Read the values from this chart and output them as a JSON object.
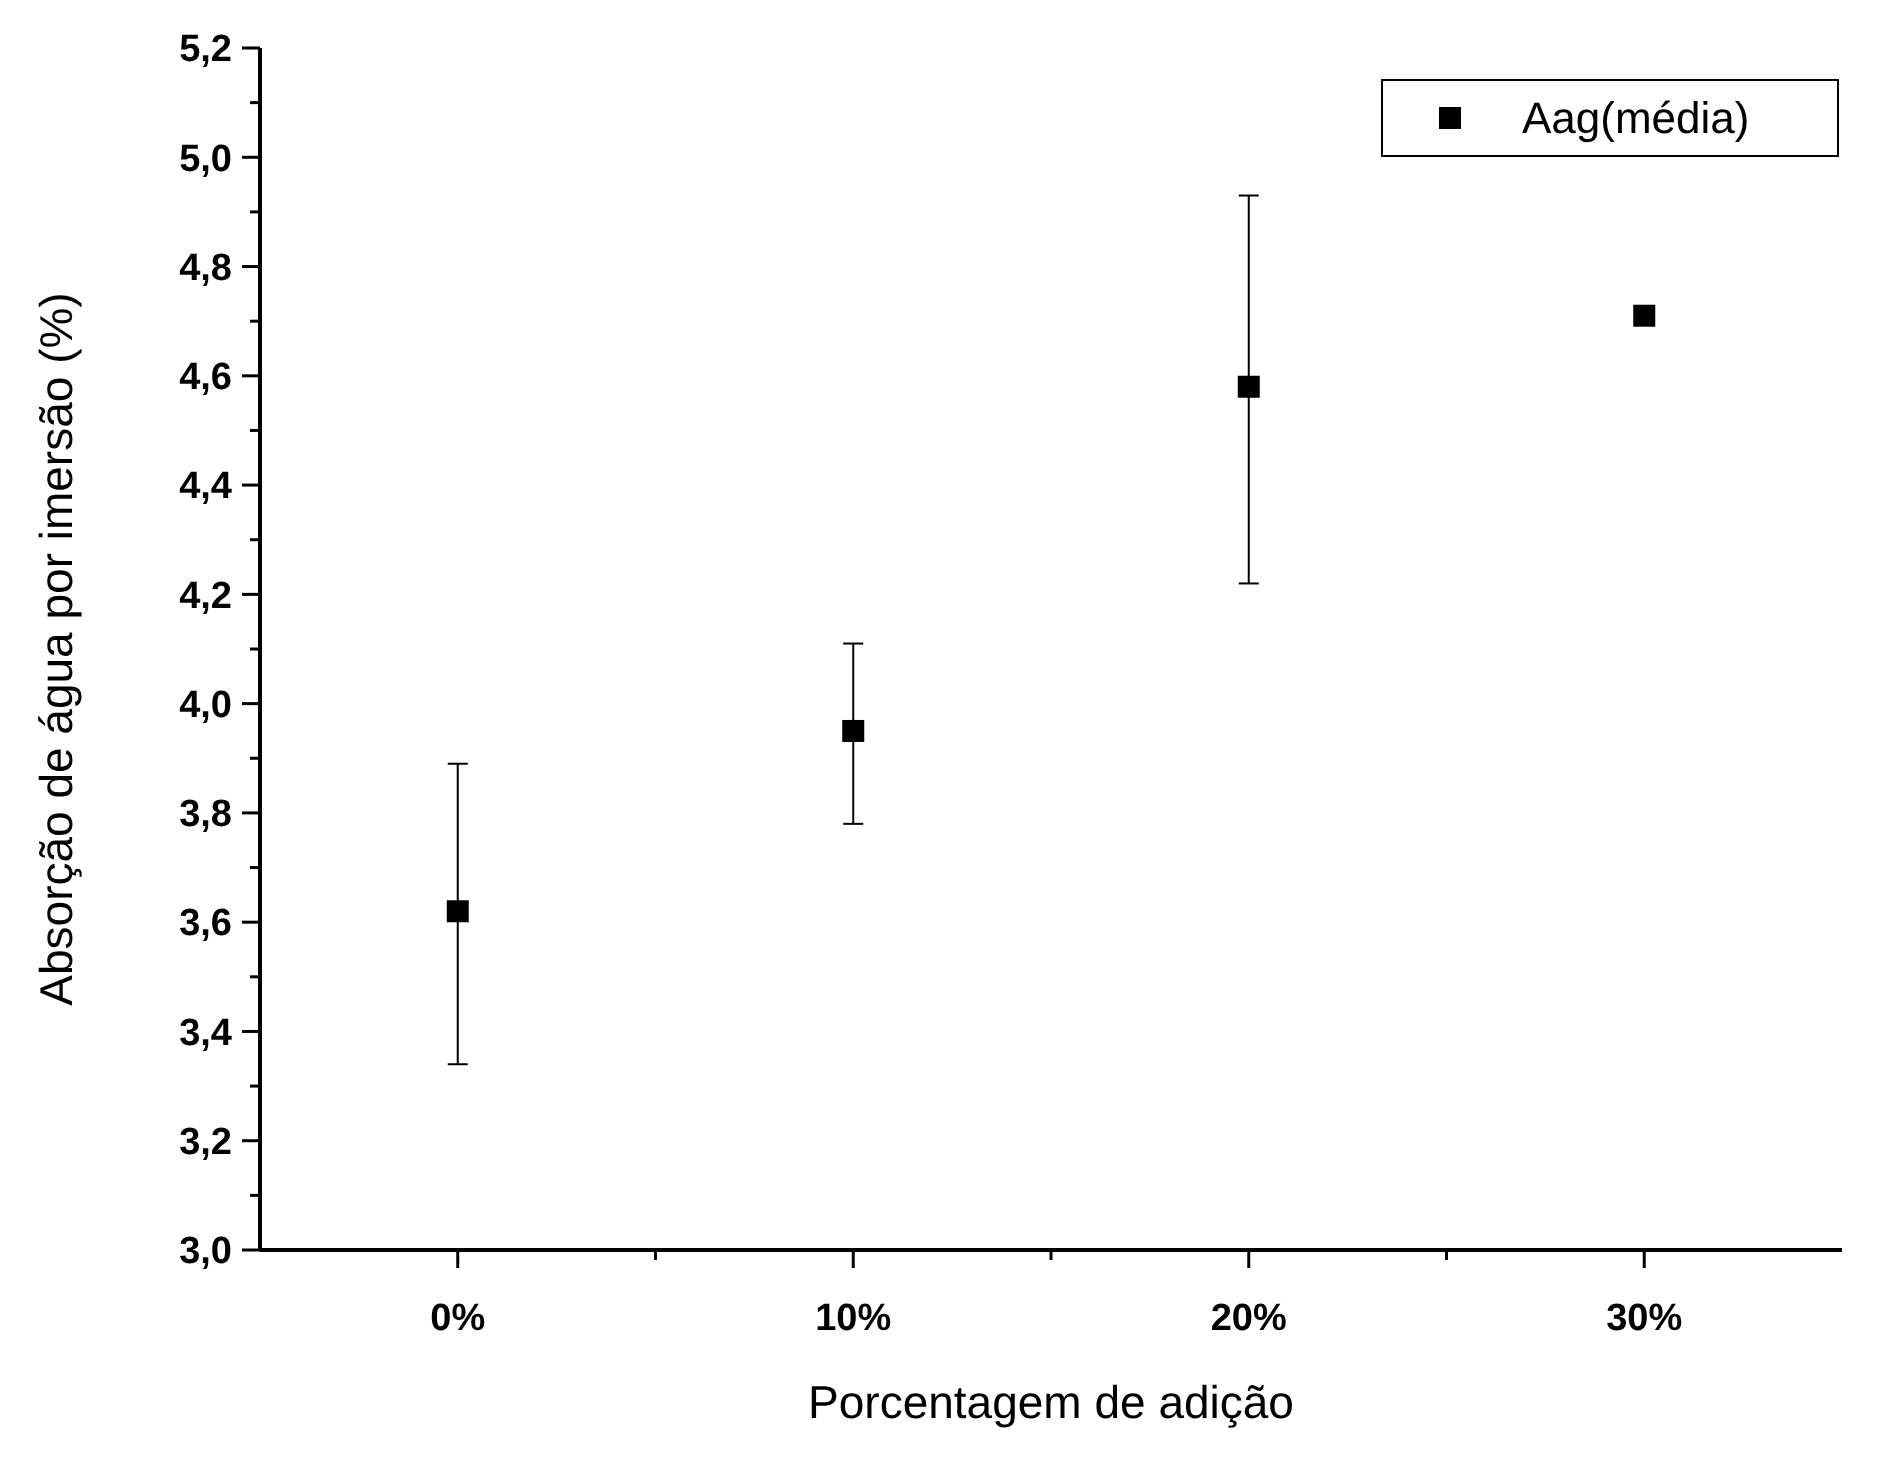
{
  "chart_data": {
    "type": "scatter",
    "xlabel": "Porcentagem de adição",
    "ylabel": "Absorção de água por imersão  (%)",
    "categories": [
      "0%",
      "10%",
      "20%",
      "30%"
    ],
    "series": [
      {
        "name": "Aag(média)",
        "color": "#000000",
        "values": [
          3.62,
          3.95,
          4.58,
          4.71
        ],
        "errors": [
          [
            3.34,
            3.89
          ],
          [
            3.78,
            4.11
          ],
          [
            4.22,
            4.93
          ],
          null
        ]
      }
    ],
    "ylim": [
      3.0,
      5.2
    ],
    "yticks": [
      {
        "value": 3.0,
        "label": "3,0"
      },
      {
        "value": 3.2,
        "label": "3,2"
      },
      {
        "value": 3.4,
        "label": "3,4"
      },
      {
        "value": 3.6,
        "label": "3,6"
      },
      {
        "value": 3.8,
        "label": "3,8"
      },
      {
        "value": 4.0,
        "label": "4,0"
      },
      {
        "value": 4.2,
        "label": "4,2"
      },
      {
        "value": 4.4,
        "label": "4,4"
      },
      {
        "value": 4.6,
        "label": "4,6"
      },
      {
        "value": 4.8,
        "label": "4,8"
      },
      {
        "value": 5.0,
        "label": "5,0"
      },
      {
        "value": 5.2,
        "label": "5,2"
      }
    ],
    "marker": "square",
    "legend": "top right",
    "grid": false
  }
}
